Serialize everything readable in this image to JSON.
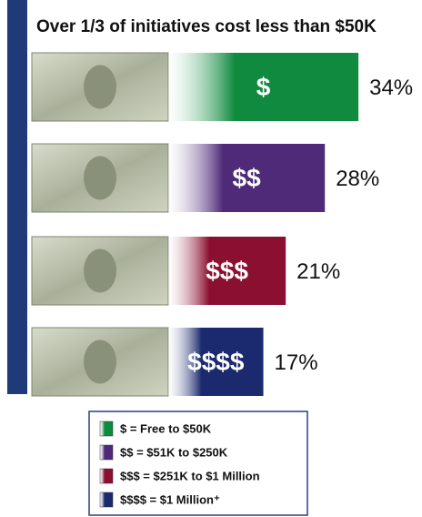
{
  "chart_data": {
    "type": "bar",
    "title": "Over 1/3 of initiatives cost less than $50K",
    "categories": [
      "$",
      "$$",
      "$$$",
      "$$$$"
    ],
    "values": [
      34,
      28,
      21,
      17
    ],
    "value_labels": [
      "34%",
      "28%",
      "21%",
      "17%"
    ],
    "colors": [
      "#0f8a3e",
      "#4e2a78",
      "#8a0f30",
      "#1b2a6e"
    ],
    "legend": [
      "$ = Free to $50K",
      "$$ = $51K to $250K",
      "$$$ = $251K to $1 Million",
      "$$$$ = $1 Million⁺"
    ]
  }
}
